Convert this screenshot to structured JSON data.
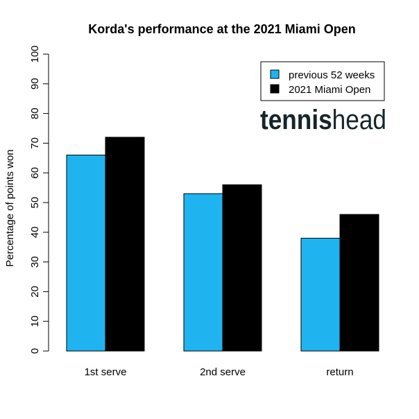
{
  "chart_data": {
    "type": "bar",
    "title": "Korda's performance at the 2021 Miami Open",
    "xlabel": "",
    "ylabel": "Percentage of points won",
    "categories": [
      "1st serve",
      "2nd serve",
      "return"
    ],
    "series": [
      {
        "name": "previous 52 weeks",
        "color": "#1fb4ef",
        "values": [
          66,
          53,
          38
        ]
      },
      {
        "name": "2021 Miami Open",
        "color": "#000000",
        "values": [
          72,
          56,
          46
        ]
      }
    ],
    "ylim": [
      0,
      100
    ],
    "yticks": [
      0,
      10,
      20,
      30,
      40,
      50,
      60,
      70,
      80,
      90,
      100
    ],
    "grid": false,
    "legend_position": "top-right"
  },
  "logo": {
    "part_bold": "tennis",
    "part_light": "head"
  }
}
